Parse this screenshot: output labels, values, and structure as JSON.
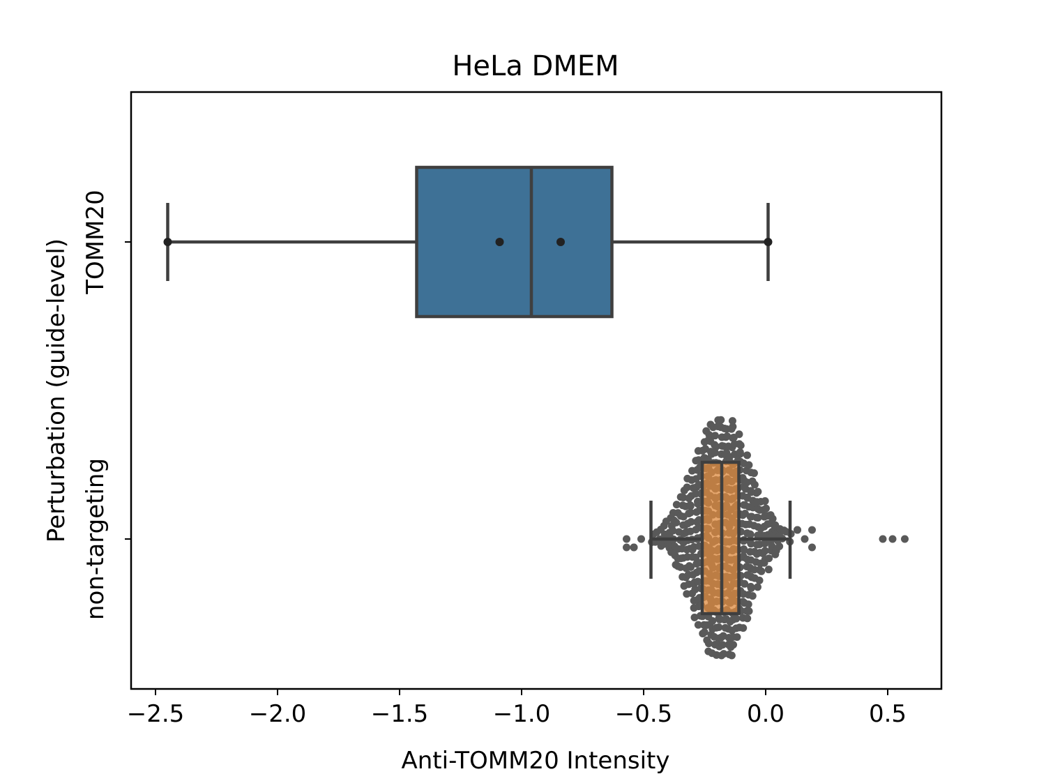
{
  "chart_data": {
    "type": "box",
    "orientation": "horizontal",
    "title": "HeLa DMEM",
    "xlabel": "Anti-TOMM20 Intensity",
    "ylabel": "Perturbation (guide-level)",
    "xlim": [
      -2.6,
      0.72
    ],
    "x_ticks": [
      -2.5,
      -2.0,
      -1.5,
      -1.0,
      -0.5,
      0.0,
      0.5
    ],
    "x_tick_labels": [
      "−2.5",
      "−2.0",
      "−1.5",
      "−1.0",
      "−0.5",
      "0.0",
      "0.5"
    ],
    "categories": [
      "TOMM20",
      "non-targeting"
    ],
    "boxes": [
      {
        "category": "TOMM20",
        "color": "#3e7196",
        "whisker_low": -2.45,
        "q1": -1.43,
        "median": -0.96,
        "q3": -0.63,
        "whisker_high": 0.01,
        "points": [
          -2.45,
          -1.09,
          -0.84,
          0.01
        ]
      },
      {
        "category": "non-targeting",
        "color": "#dd8a3e",
        "whisker_low": -0.47,
        "q1": -0.26,
        "median": -0.18,
        "q3": -0.11,
        "whisker_high": 0.1,
        "outliers": [
          -0.57,
          -0.54,
          -0.51,
          0.13,
          0.16,
          0.19,
          0.48,
          0.52,
          0.57
        ]
      }
    ],
    "swarm_color": "#595959",
    "grid": false,
    "legend": "none"
  }
}
